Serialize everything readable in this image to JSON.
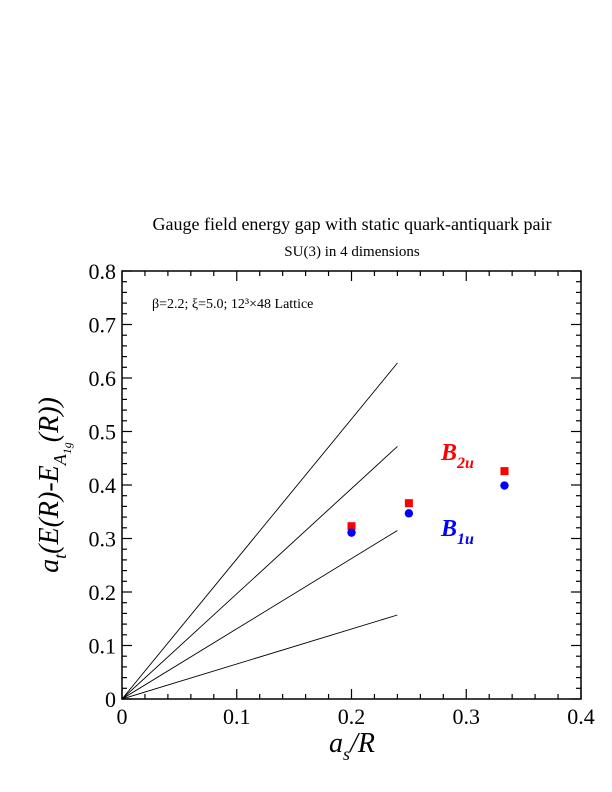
{
  "chart_data": {
    "type": "scatter",
    "title": "Gauge field energy gap with static quark-antiquark pair",
    "subtitle": "SU(3) in 4 dimensions",
    "annotation": "β=2.2;  ξ=5.0;  12³×48 Lattice",
    "xlabel": "a_s/R",
    "ylabel": "a_t(E(R)-E_A1g(R))",
    "xlim": [
      0,
      0.4
    ],
    "ylim": [
      0,
      0.8
    ],
    "xticks": [
      0,
      0.1,
      0.2,
      0.3,
      0.4
    ],
    "xtick_labels": [
      "0",
      "0.1",
      "0.2",
      "0.3",
      "0.4"
    ],
    "yticks": [
      0,
      0.1,
      0.2,
      0.3,
      0.4,
      0.5,
      0.6,
      0.7,
      0.8
    ],
    "ytick_labels": [
      "0",
      "0.1",
      "0.2",
      "0.3",
      "0.4",
      "0.5",
      "0.6",
      "0.7",
      "0.8"
    ],
    "grid": false,
    "series": [
      {
        "name": "B2u",
        "label_main": "B",
        "label_sub": "2u",
        "color": "#ff0000",
        "marker": "square",
        "x": [
          0.2,
          0.25,
          0.3333
        ],
        "y": [
          0.323,
          0.366,
          0.426
        ]
      },
      {
        "name": "B1u",
        "label_main": "B",
        "label_sub": "1u",
        "color": "#0000ff",
        "marker": "circle",
        "x": [
          0.2,
          0.25,
          0.3333
        ],
        "y": [
          0.311,
          0.347,
          0.399
        ]
      }
    ],
    "reference_lines": [
      {
        "x": [
          0,
          0.24
        ],
        "y": [
          0,
          0.628
        ]
      },
      {
        "x": [
          0,
          0.24
        ],
        "y": [
          0,
          0.472
        ]
      },
      {
        "x": [
          0,
          0.24
        ],
        "y": [
          0,
          0.315
        ]
      },
      {
        "x": [
          0,
          0.24
        ],
        "y": [
          0,
          0.157
        ]
      }
    ]
  }
}
